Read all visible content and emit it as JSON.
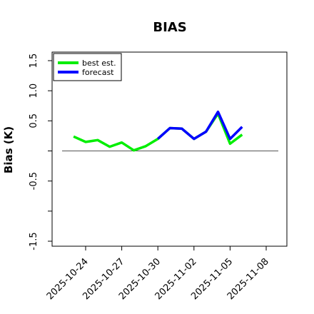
{
  "chart_data": {
    "type": "line",
    "title": "BIAS",
    "xlabel": "",
    "ylabel": "Bias (K)",
    "ylim": [
      -1.5,
      1.6
    ],
    "yticks": [
      -1.5,
      -1.0,
      -0.5,
      0.0,
      0.5,
      1.0,
      1.5
    ],
    "ytick_labels": [
      "-1.5",
      "",
      "-0.5",
      "",
      "0.5",
      "1.0",
      "1.5"
    ],
    "xlim": [
      "2025-10-21",
      "2025-11-10"
    ],
    "xticks": [
      "2025-10-24",
      "2025-10-27",
      "2025-10-30",
      "2025-11-02",
      "2025-11-05",
      "2025-11-08"
    ],
    "xtick_labels": [
      "2025-10-24",
      "2025-10-27",
      "2025-10-30",
      "2025-11-02",
      "2025-11-05",
      "2025-11-08"
    ],
    "highlight_tick": "2025-10-30",
    "highlight_color": "#008000",
    "reference_line": 0.0,
    "legend": {
      "position": "top-left",
      "entries": [
        "best est.",
        "forecast"
      ]
    },
    "series": [
      {
        "name": "best est.",
        "color": "#00ee00",
        "x": [
          "2025-10-23",
          "2025-10-24",
          "2025-10-25",
          "2025-10-26",
          "2025-10-27",
          "2025-10-28",
          "2025-10-29",
          "2025-10-30",
          "2025-10-31",
          "2025-11-01",
          "2025-11-02",
          "2025-11-03",
          "2025-11-04",
          "2025-11-05",
          "2025-11-06"
        ],
        "values": [
          0.24,
          0.15,
          0.18,
          0.07,
          0.14,
          0.01,
          0.08,
          0.2,
          0.38,
          0.37,
          0.2,
          0.32,
          0.62,
          0.12,
          0.27
        ]
      },
      {
        "name": "forecast",
        "color": "#0000ff",
        "x": [
          "2025-10-30",
          "2025-10-31",
          "2025-11-01",
          "2025-11-02",
          "2025-11-03",
          "2025-11-04",
          "2025-11-05",
          "2025-11-06"
        ],
        "values": [
          0.2,
          0.38,
          0.37,
          0.2,
          0.32,
          0.65,
          0.2,
          0.4
        ]
      }
    ]
  }
}
